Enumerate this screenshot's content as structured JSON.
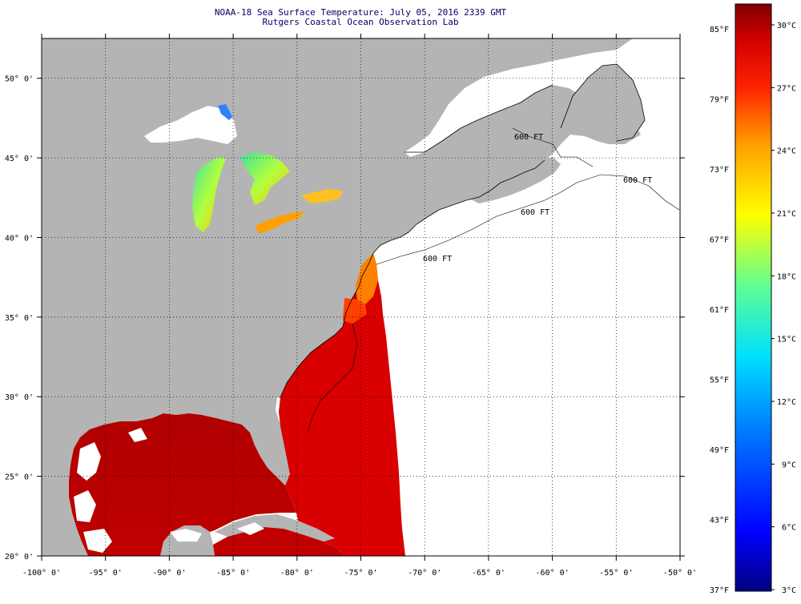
{
  "title": {
    "line1": "NOAA-18 Sea Surface Temperature:  July 05, 2016 2339 GMT",
    "line2": "Rutgers Coastal Ocean Observation Lab"
  },
  "map": {
    "lon_range": [
      -100,
      -50
    ],
    "lat_range": [
      20,
      52.5
    ],
    "lon_ticks": [
      {
        "value": -100,
        "label": "-100° 0'"
      },
      {
        "value": -95,
        "label": "-95° 0'"
      },
      {
        "value": -90,
        "label": "-90° 0'"
      },
      {
        "value": -85,
        "label": "-85° 0'"
      },
      {
        "value": -80,
        "label": "-80° 0'"
      },
      {
        "value": -75,
        "label": "-75° 0'"
      },
      {
        "value": -70,
        "label": "-70° 0'"
      },
      {
        "value": -65,
        "label": "-65° 0'"
      },
      {
        "value": -60,
        "label": "-60° 0'"
      },
      {
        "value": -55,
        "label": "-55° 0'"
      },
      {
        "value": -50,
        "label": "-50° 0'"
      }
    ],
    "lat_ticks": [
      {
        "value": 50,
        "label": "50° 0'"
      },
      {
        "value": 45,
        "label": "45° 0'"
      },
      {
        "value": 40,
        "label": "40° 0'"
      },
      {
        "value": 35,
        "label": "35° 0'"
      },
      {
        "value": 30,
        "label": "30° 0'"
      },
      {
        "value": 25,
        "label": "25° 0'"
      },
      {
        "value": 20,
        "label": "20° 0'"
      }
    ],
    "isobath_labels": [
      "600 FT",
      "600 FT",
      "600 FT",
      "600 FT"
    ],
    "colors": {
      "land": "#b4b4b4",
      "no_data": "#ffffff",
      "warm_sst": "#d80000",
      "hot_sst": "#a80000",
      "coastline": "#000000",
      "grid": "#000000"
    }
  },
  "colorbar": {
    "range_c": [
      3,
      31
    ],
    "range_f": [
      37,
      88
    ],
    "fahrenheit_labels": [
      "85°F",
      "79°F",
      "73°F",
      "67°F",
      "61°F",
      "55°F",
      "49°F",
      "43°F",
      "37°F"
    ],
    "celsius_labels": [
      "30°C",
      "27°C",
      "24°C",
      "21°C",
      "18°C",
      "15°C",
      "12°C",
      "9°C",
      "6°C",
      "3°C"
    ],
    "colors": [
      "#000080",
      "#0000ff",
      "#00a0ff",
      "#00e0ff",
      "#80ff80",
      "#ffff00",
      "#ffa000",
      "#ff2000",
      "#c00000",
      "#800000"
    ]
  }
}
